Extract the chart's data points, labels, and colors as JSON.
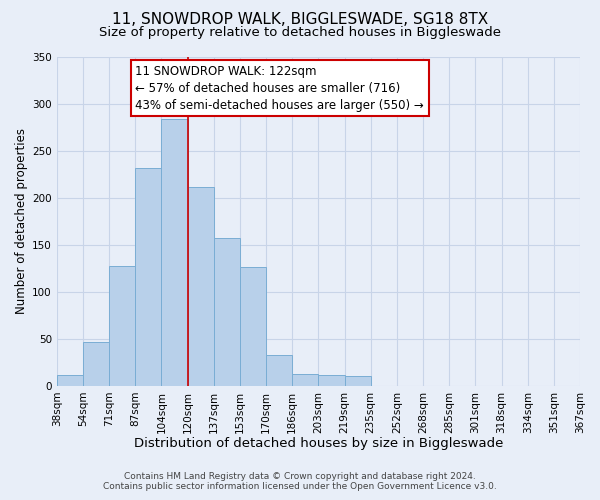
{
  "title": "11, SNOWDROP WALK, BIGGLESWADE, SG18 8TX",
  "subtitle": "Size of property relative to detached houses in Biggleswade",
  "xlabel": "Distribution of detached houses by size in Biggleswade",
  "ylabel": "Number of detached properties",
  "bin_labels": [
    "38sqm",
    "54sqm",
    "71sqm",
    "87sqm",
    "104sqm",
    "120sqm",
    "137sqm",
    "153sqm",
    "170sqm",
    "186sqm",
    "203sqm",
    "219sqm",
    "235sqm",
    "252sqm",
    "268sqm",
    "285sqm",
    "301sqm",
    "318sqm",
    "334sqm",
    "351sqm",
    "367sqm"
  ],
  "bar_heights": [
    11,
    47,
    127,
    231,
    284,
    211,
    157,
    126,
    33,
    13,
    12,
    10,
    0,
    0,
    0,
    0,
    0,
    0,
    0,
    0
  ],
  "bar_color": "#b8d0ea",
  "bar_edge_color": "#7aadd4",
  "ylim": [
    0,
    350
  ],
  "yticks": [
    0,
    50,
    100,
    150,
    200,
    250,
    300,
    350
  ],
  "property_line_x": 5,
  "property_line_color": "#cc0000",
  "annotation_box_color": "#ffffff",
  "annotation_box_edge_color": "#cc0000",
  "annotation_line1": "11 SNOWDROP WALK: 122sqm",
  "annotation_line2": "← 57% of detached houses are smaller (716)",
  "annotation_line3": "43% of semi-detached houses are larger (550) →",
  "footer_line1": "Contains HM Land Registry data © Crown copyright and database right 2024.",
  "footer_line2": "Contains public sector information licensed under the Open Government Licence v3.0.",
  "background_color": "#e8eef8",
  "plot_bg_color": "#e8eef8",
  "grid_color": "#c8d4e8",
  "title_fontsize": 11,
  "subtitle_fontsize": 9.5,
  "xlabel_fontsize": 9.5,
  "ylabel_fontsize": 8.5,
  "tick_fontsize": 7.5,
  "annotation_fontsize": 8.5,
  "footer_fontsize": 6.5
}
